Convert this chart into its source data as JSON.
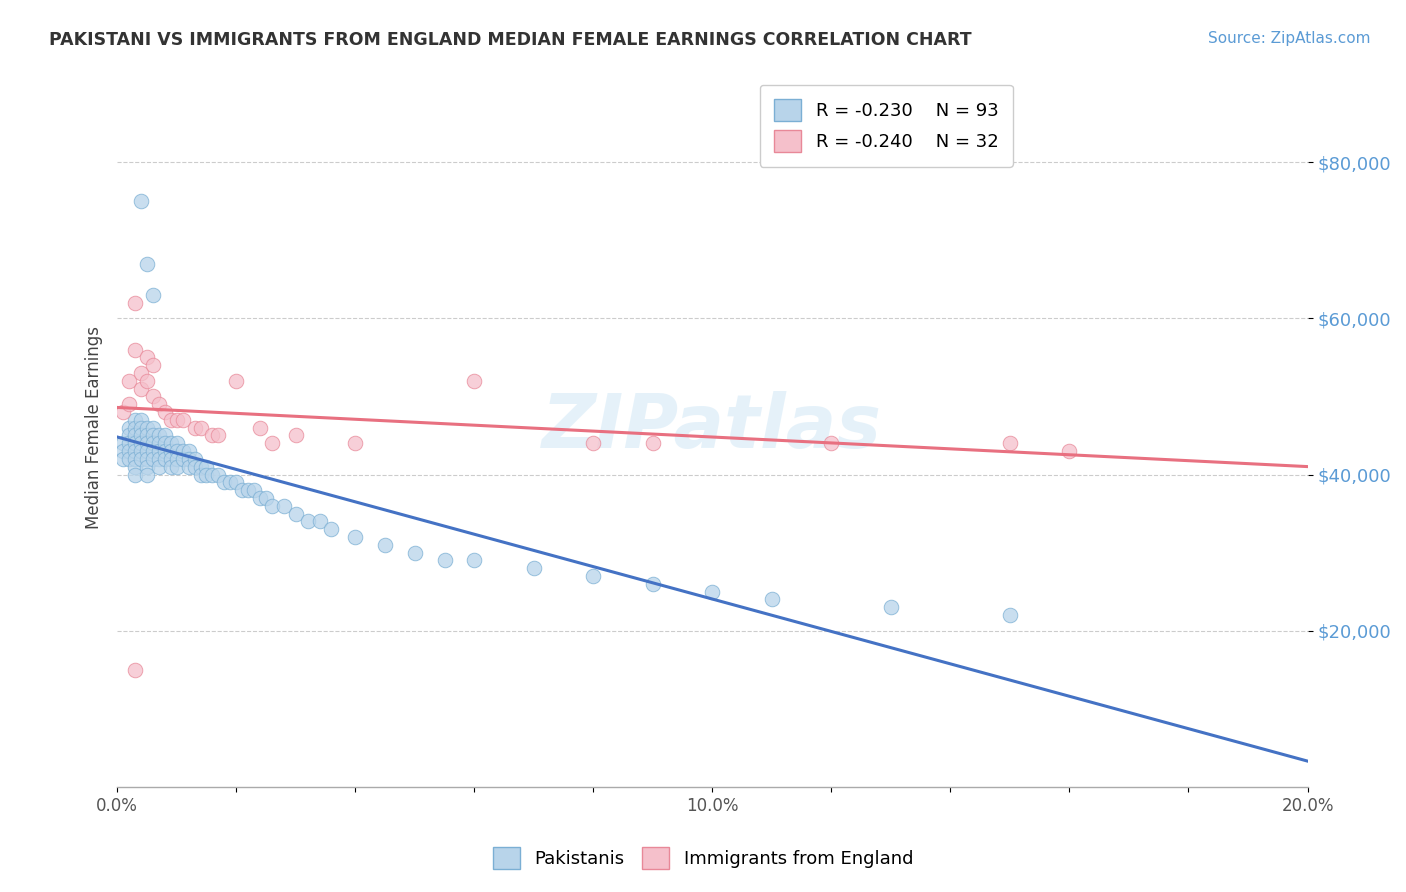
{
  "title": "PAKISTANI VS IMMIGRANTS FROM ENGLAND MEDIAN FEMALE EARNINGS CORRELATION CHART",
  "source": "Source: ZipAtlas.com",
  "ylabel": "Median Female Earnings",
  "xlim": [
    0.0,
    0.2
  ],
  "ylim": [
    0,
    92000
  ],
  "ytick_labels": [
    "$20,000",
    "$40,000",
    "$60,000",
    "$80,000"
  ],
  "ytick_values": [
    20000,
    40000,
    60000,
    80000
  ],
  "xtick_values": [
    0.0,
    0.02,
    0.04,
    0.06,
    0.08,
    0.1,
    0.12,
    0.14,
    0.16,
    0.18,
    0.2
  ],
  "xtick_labels": [
    "0.0%",
    "",
    "",
    "",
    "",
    "10.0%",
    "",
    "",
    "",
    "",
    "20.0%"
  ],
  "legend_r1": "R = -0.230",
  "legend_n1": "N = 93",
  "legend_r2": "R = -0.240",
  "legend_n2": "N = 32",
  "color_pakistani_fill": "#b8d4ea",
  "color_pakistani_edge": "#7bafd4",
  "color_england_fill": "#f5c0cb",
  "color_england_edge": "#e88898",
  "color_line_pakistani": "#4472c4",
  "color_line_england": "#e87080",
  "watermark": "ZIPatlas",
  "background_color": "#ffffff",
  "pakistani_x": [
    0.001,
    0.001,
    0.001,
    0.002,
    0.002,
    0.002,
    0.002,
    0.002,
    0.003,
    0.003,
    0.003,
    0.003,
    0.003,
    0.003,
    0.003,
    0.003,
    0.004,
    0.004,
    0.004,
    0.004,
    0.004,
    0.004,
    0.005,
    0.005,
    0.005,
    0.005,
    0.005,
    0.005,
    0.005,
    0.006,
    0.006,
    0.006,
    0.006,
    0.006,
    0.007,
    0.007,
    0.007,
    0.007,
    0.007,
    0.008,
    0.008,
    0.008,
    0.008,
    0.009,
    0.009,
    0.009,
    0.009,
    0.01,
    0.01,
    0.01,
    0.01,
    0.011,
    0.011,
    0.012,
    0.012,
    0.012,
    0.013,
    0.013,
    0.014,
    0.014,
    0.015,
    0.015,
    0.016,
    0.017,
    0.018,
    0.019,
    0.02,
    0.021,
    0.022,
    0.023,
    0.024,
    0.025,
    0.026,
    0.028,
    0.03,
    0.032,
    0.034,
    0.036,
    0.04,
    0.045,
    0.05,
    0.055,
    0.06,
    0.07,
    0.08,
    0.09,
    0.1,
    0.11,
    0.13,
    0.15,
    0.004,
    0.005,
    0.006
  ],
  "pakistani_y": [
    44000,
    43000,
    42000,
    46000,
    45000,
    44000,
    43000,
    42000,
    47000,
    46000,
    45000,
    44000,
    43000,
    42000,
    41000,
    40000,
    47000,
    46000,
    45000,
    44000,
    43000,
    42000,
    46000,
    45000,
    44000,
    43000,
    42000,
    41000,
    40000,
    46000,
    45000,
    44000,
    43000,
    42000,
    45000,
    44000,
    43000,
    42000,
    41000,
    45000,
    44000,
    43000,
    42000,
    44000,
    43000,
    42000,
    41000,
    44000,
    43000,
    42000,
    41000,
    43000,
    42000,
    43000,
    42000,
    41000,
    42000,
    41000,
    41000,
    40000,
    41000,
    40000,
    40000,
    40000,
    39000,
    39000,
    39000,
    38000,
    38000,
    38000,
    37000,
    37000,
    36000,
    36000,
    35000,
    34000,
    34000,
    33000,
    32000,
    31000,
    30000,
    29000,
    29000,
    28000,
    27000,
    26000,
    25000,
    24000,
    23000,
    22000,
    75000,
    67000,
    63000
  ],
  "england_x": [
    0.001,
    0.002,
    0.002,
    0.003,
    0.003,
    0.004,
    0.004,
    0.005,
    0.005,
    0.006,
    0.006,
    0.007,
    0.008,
    0.009,
    0.01,
    0.011,
    0.013,
    0.014,
    0.016,
    0.017,
    0.02,
    0.024,
    0.026,
    0.03,
    0.04,
    0.06,
    0.08,
    0.09,
    0.12,
    0.15,
    0.16,
    0.003
  ],
  "england_y": [
    48000,
    52000,
    49000,
    62000,
    56000,
    53000,
    51000,
    55000,
    52000,
    54000,
    50000,
    49000,
    48000,
    47000,
    47000,
    47000,
    46000,
    46000,
    45000,
    45000,
    52000,
    46000,
    44000,
    45000,
    44000,
    52000,
    44000,
    44000,
    44000,
    44000,
    43000,
    15000
  ]
}
